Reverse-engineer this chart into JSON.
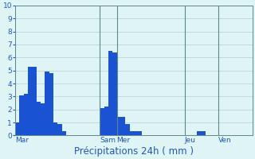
{
  "xlabel": "Précipitations 24h ( mm )",
  "background_color": "#dff4f4",
  "bar_color": "#1a52d4",
  "grid_color": "#b0d0d0",
  "grid_minor_color": "#c8e4e4",
  "ylim": [
    0,
    10
  ],
  "yticks": [
    0,
    1,
    2,
    3,
    4,
    5,
    6,
    7,
    8,
    9,
    10
  ],
  "num_bars": 56,
  "bar_values": [
    1.0,
    3.1,
    3.2,
    5.3,
    5.3,
    2.6,
    2.5,
    4.9,
    4.8,
    1.0,
    0.9,
    0.3,
    0.0,
    0.0,
    0.0,
    0.0,
    0.0,
    0.0,
    0.0,
    0.0,
    2.1,
    2.2,
    6.5,
    6.4,
    1.4,
    1.4,
    0.9,
    0.3,
    0.3,
    0.3,
    0.0,
    0.0,
    0.0,
    0.0,
    0.0,
    0.0,
    0.0,
    0.0,
    0.0,
    0.0,
    0.0,
    0.0,
    0.0,
    0.35,
    0.35,
    0.0,
    0.0,
    0.0,
    0.0,
    0.0,
    0.0,
    0.0,
    0.0,
    0.0,
    0.0,
    0.0
  ],
  "day_labels": [
    "Mar",
    "Sam",
    "Mer",
    "Jeu",
    "Ven"
  ],
  "day_tick_positions": [
    0,
    20,
    24,
    40,
    48
  ],
  "vline_positions": [
    0,
    20,
    24,
    40,
    48
  ],
  "vline_color": "#608888",
  "xlabel_fontsize": 8.5,
  "tick_fontsize": 6.5,
  "day_label_fontsize": 6.5,
  "day_label_color": "#2255bb",
  "ytick_color": "#2255bb",
  "spine_color": "#608888"
}
